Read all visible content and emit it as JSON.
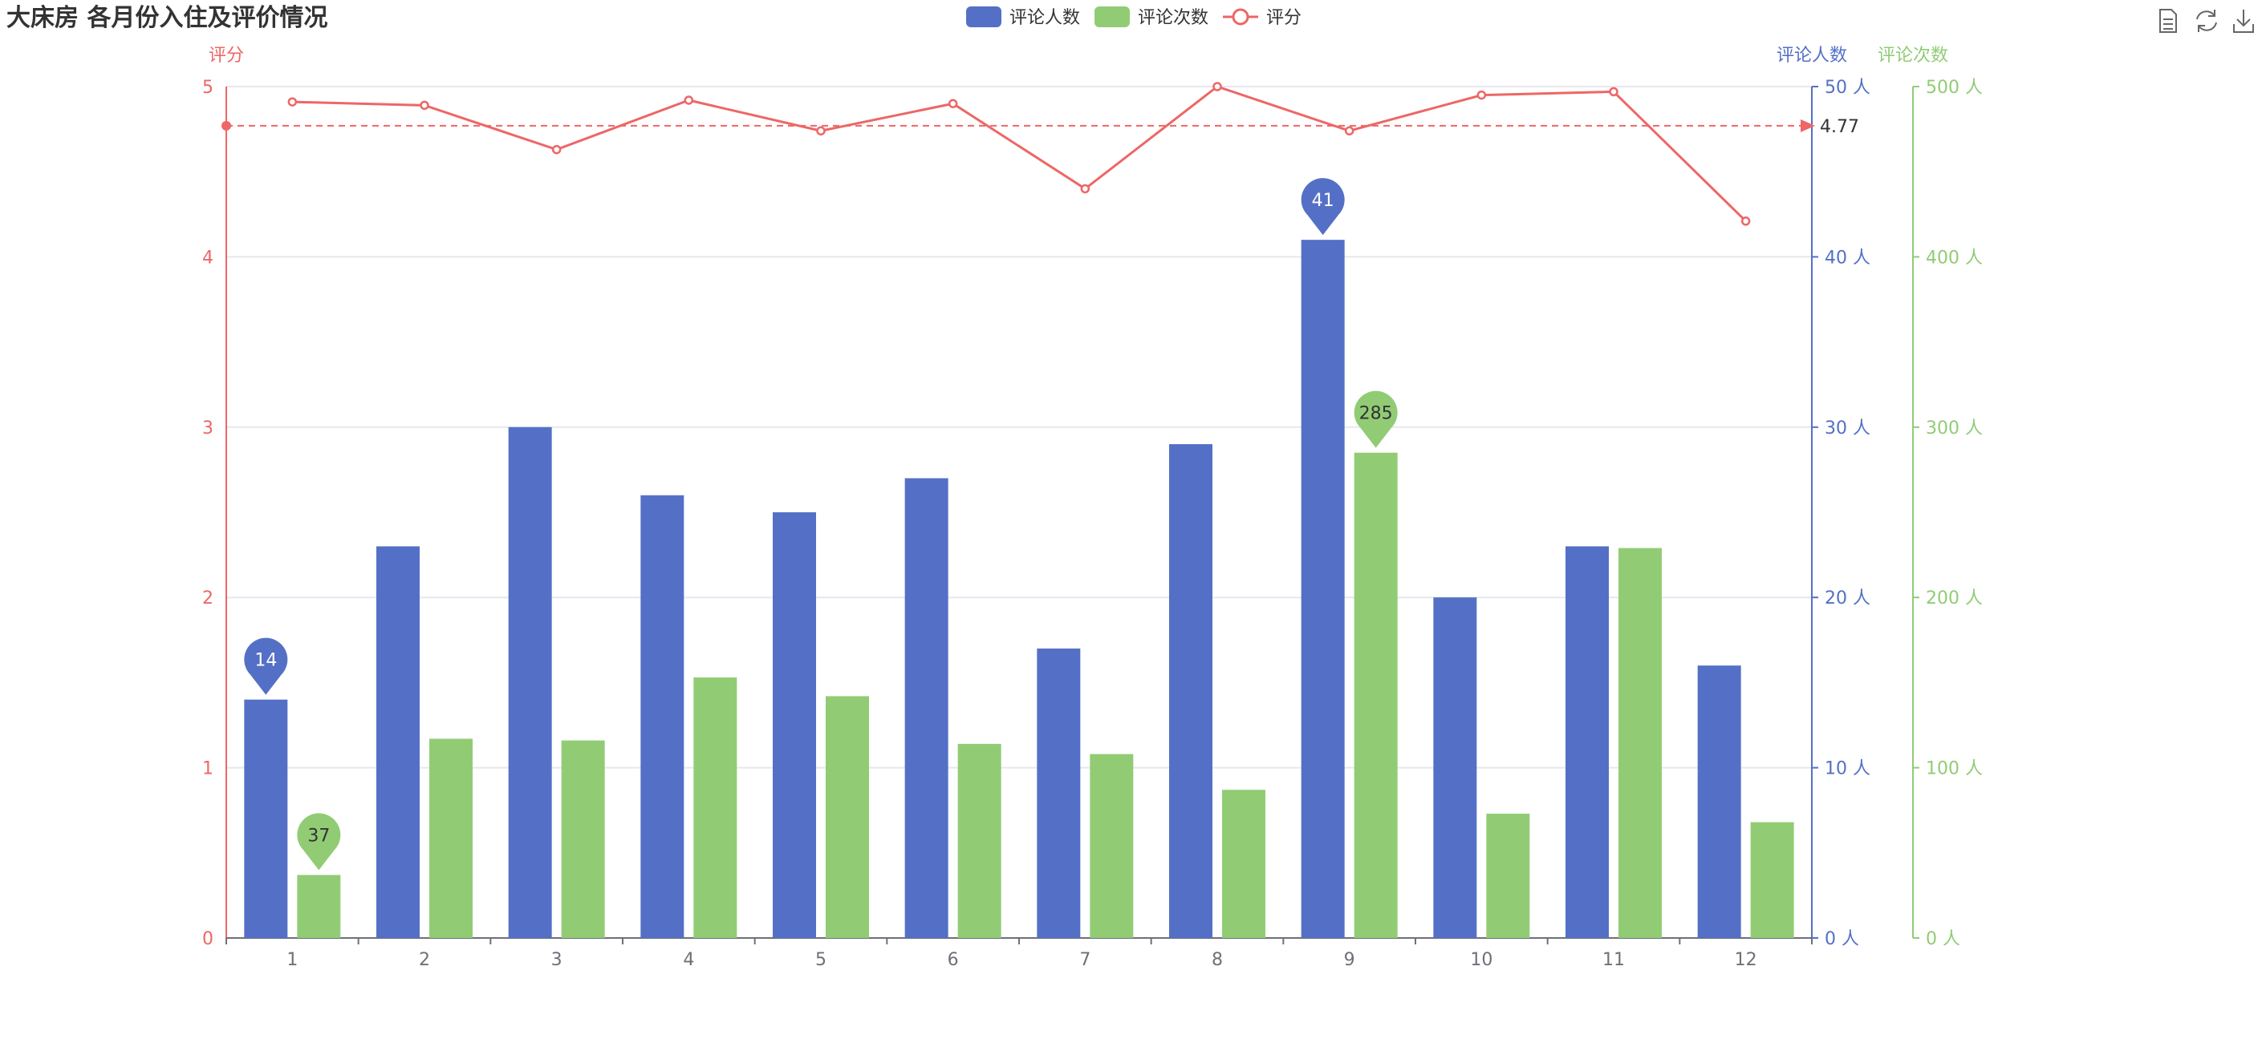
{
  "title": "大床房 各月份入住及评价情况",
  "toolbox": [
    {
      "name": "data-view-icon"
    },
    {
      "name": "restore-icon"
    },
    {
      "name": "save-image-icon"
    }
  ],
  "colors": {
    "people": "#5470c6",
    "count": "#91cc75",
    "score": "#ee6666",
    "grid": "#e6e8ef",
    "axis_text": "#6e7079",
    "text": "#333333"
  },
  "chart_data": {
    "type": "bar",
    "categories": [
      "1",
      "2",
      "3",
      "4",
      "5",
      "6",
      "7",
      "8",
      "9",
      "10",
      "11",
      "12"
    ],
    "series": [
      {
        "name": "评论人数",
        "type": "bar",
        "axis": "left-inner",
        "values": [
          14,
          23,
          30,
          26,
          25,
          27,
          17,
          29,
          41,
          20,
          23,
          16
        ]
      },
      {
        "name": "评论次数",
        "type": "bar",
        "axis": "right-outer",
        "values": [
          37,
          117,
          116,
          153,
          142,
          114,
          108,
          87,
          285,
          73,
          229,
          68
        ]
      },
      {
        "name": "评分",
        "type": "line",
        "axis": "left",
        "values": [
          4.91,
          4.89,
          4.63,
          4.92,
          4.74,
          4.9,
          4.4,
          5.0,
          4.74,
          4.95,
          4.97,
          4.21
        ]
      }
    ],
    "axes": {
      "score": {
        "label": "评分",
        "ticks": [
          "0",
          "1",
          "2",
          "3",
          "4",
          "5"
        ],
        "min": 0,
        "max": 5
      },
      "people": {
        "label": "评论人数",
        "ticks": [
          "0 人",
          "10 人",
          "20 人",
          "30 人",
          "40 人",
          "50 人"
        ],
        "min": 0,
        "max": 50
      },
      "count": {
        "label": "评论次数",
        "ticks": [
          "0 人",
          "100 人",
          "200 人",
          "300 人",
          "400 人",
          "500 人"
        ],
        "min": 0,
        "max": 500
      }
    },
    "markers": [
      {
        "series": "评论人数",
        "label": "14",
        "category": "1",
        "value": 14
      },
      {
        "series": "评论人数",
        "label": "41",
        "category": "9",
        "value": 41
      },
      {
        "series": "评论次数",
        "label": "37",
        "category": "1",
        "value": 37
      },
      {
        "series": "评论次数",
        "label": "285",
        "category": "9",
        "value": 285
      }
    ],
    "average_line": {
      "series": "评分",
      "value": 4.77,
      "label": "4.77"
    },
    "legend_position": "top-center",
    "grid": true
  }
}
